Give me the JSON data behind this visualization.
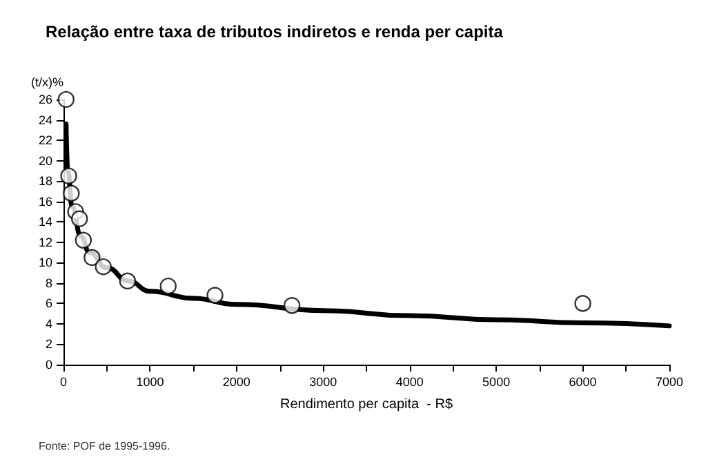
{
  "chart_data": {
    "type": "scatter",
    "title": "Relação entre taxa de tributos indiretos e renda per capita",
    "xlabel": "Rendimento per capita  - R$",
    "ylabel": "(t/x)%",
    "annotations": [
      "Fonte: POF de 1995-1996."
    ],
    "xlim": [
      0,
      7000
    ],
    "xticks": [
      0,
      {
        "value": 500,
        "label": null
      },
      1000,
      {
        "value": 1500,
        "label": null
      },
      2000,
      {
        "value": 2500,
        "label": null
      },
      3000,
      {
        "value": 3500,
        "label": null
      },
      4000,
      {
        "value": 4500,
        "label": null
      },
      5000,
      {
        "value": 5500,
        "label": null
      },
      6000,
      {
        "value": 6500,
        "label": null
      },
      7000
    ],
    "ylim": [
      0,
      26
    ],
    "yticks": [
      0,
      2,
      4,
      6,
      8,
      10,
      12,
      14,
      16,
      18,
      20,
      22,
      24,
      26
    ],
    "grid": false,
    "series": [
      {
        "marker": "circle",
        "color": "#000000",
        "x": [
          30,
          60,
          90,
          140,
          185,
          230,
          330,
          460,
          740,
          1210,
          1750,
          2640,
          6000
        ],
        "values": [
          26,
          18.5,
          16.8,
          15,
          14.3,
          12.2,
          10.5,
          9.6,
          8.2,
          7.7,
          6.8,
          5.8,
          6.0
        ]
      },
      {
        "type": "line",
        "marker": "none",
        "line_style": "solid",
        "color": "#000000",
        "x": [
          30,
          50,
          100,
          200,
          300,
          500,
          750,
          1000,
          1500,
          2000,
          3000,
          4000,
          5000,
          6000,
          7000
        ],
        "values": [
          23.6,
          19,
          15.5,
          12.6,
          11,
          9.5,
          8.2,
          7.2,
          6.5,
          5.9,
          5.3,
          4.8,
          4.4,
          4.1,
          3.8
        ]
      }
    ]
  }
}
